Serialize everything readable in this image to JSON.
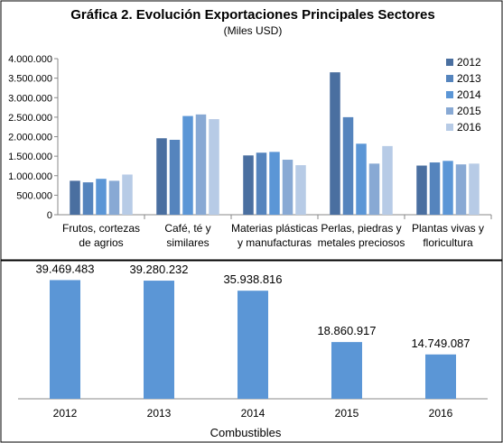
{
  "chart_data": [
    {
      "type": "bar",
      "title": "Gráfica 2. Evolución Exportaciones Principales Sectores",
      "subtitle": "(Miles USD)",
      "categories": [
        [
          "Frutos, cortezas",
          "de agrios"
        ],
        [
          "Café, té y",
          "similares"
        ],
        [
          "Materias plásticas",
          "y manufacturas"
        ],
        [
          "Perlas, piedras y",
          "metales preciosos"
        ],
        [
          "Plantas vivas y",
          "floricultura"
        ]
      ],
      "series": [
        {
          "name": "2012",
          "color": "#4a6fa0",
          "values": [
            870000,
            1960000,
            1520000,
            3650000,
            1260000
          ]
        },
        {
          "name": "2013",
          "color": "#5584bd",
          "values": [
            830000,
            1920000,
            1590000,
            2500000,
            1340000
          ]
        },
        {
          "name": "2014",
          "color": "#5b96d6",
          "values": [
            920000,
            2530000,
            1610000,
            1820000,
            1380000
          ]
        },
        {
          "name": "2015",
          "color": "#88a9d4",
          "values": [
            870000,
            2570000,
            1410000,
            1310000,
            1290000
          ]
        },
        {
          "name": "2016",
          "color": "#b7cbe6",
          "values": [
            1030000,
            2450000,
            1270000,
            1760000,
            1310000
          ]
        }
      ],
      "ylim": [
        0,
        4000000
      ],
      "yticks": [
        "0",
        "500.000",
        "1.000.000",
        "1.500.000",
        "2.000.000",
        "2.500.000",
        "3.000.000",
        "3.500.000",
        "4.000.000"
      ],
      "legend": "right",
      "grid": false
    },
    {
      "type": "bar",
      "xlabel": "Combustibles",
      "categories": [
        "2012",
        "2013",
        "2014",
        "2015",
        "2016"
      ],
      "values": [
        39469483,
        39280232,
        35938816,
        18860917,
        14749087
      ],
      "data_labels": [
        "39.469.483",
        "39.280.232",
        "35.938.816",
        "18.860.917",
        "14.749.087"
      ],
      "color": "#5b96d6",
      "ylim": [
        0,
        45000000
      ],
      "grid": false
    }
  ]
}
